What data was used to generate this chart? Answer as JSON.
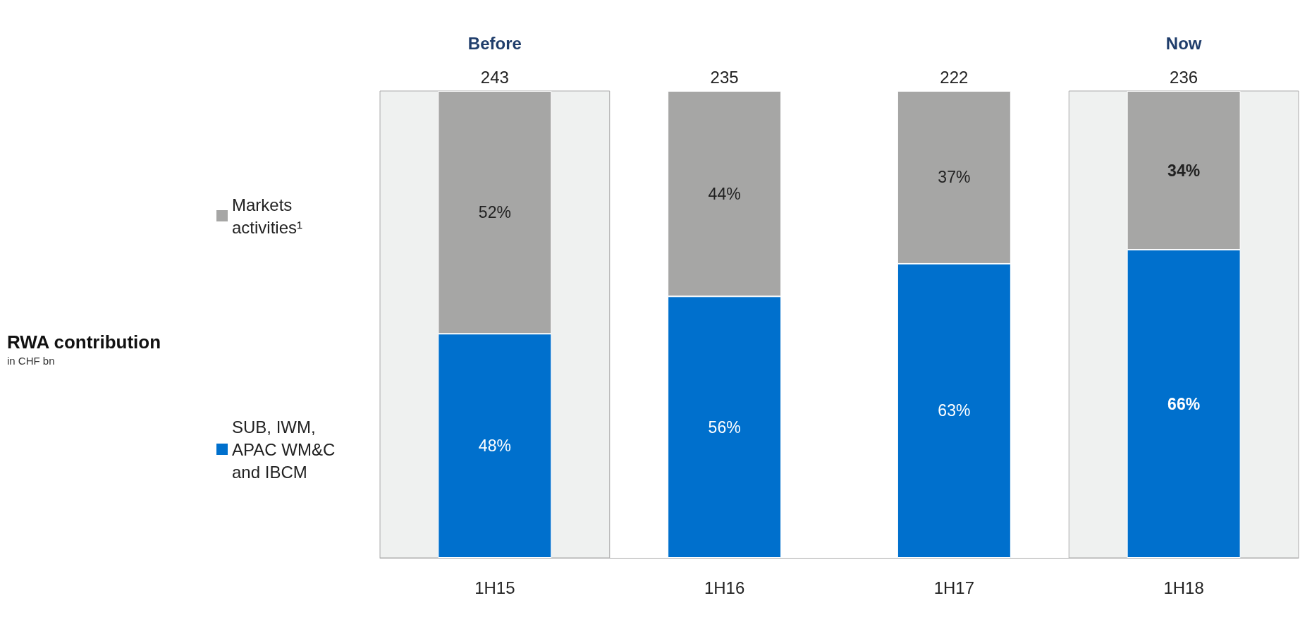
{
  "chart_data": {
    "type": "bar",
    "title": "RWA contribution",
    "subtitle": "in CHF bn",
    "categories": [
      "1H15",
      "1H16",
      "1H17",
      "1H18"
    ],
    "stacked": true,
    "series": [
      {
        "name": "SUB, IWM, APAC WM&C and IBCM",
        "color": "#0070cd",
        "values": [
          48,
          56,
          63,
          66
        ],
        "value_labels": [
          "48%",
          "56%",
          "63%",
          "66%"
        ]
      },
      {
        "name": "Markets activities¹",
        "color": "#a6a6a5",
        "values": [
          52,
          44,
          37,
          34
        ],
        "value_labels": [
          "52%",
          "44%",
          "37%",
          "34%"
        ]
      }
    ],
    "annotations": [
      {
        "text": "243",
        "x": "1H15",
        "y": 100
      },
      {
        "text": "235",
        "x": "1H16",
        "y": 100
      },
      {
        "text": "222",
        "x": "1H17",
        "y": 100
      },
      {
        "text": "236",
        "x": "1H18",
        "y": 100
      }
    ],
    "ylim": [
      0,
      100
    ],
    "bands": [
      {
        "axis": "x",
        "from": "1H15",
        "to": "1H15",
        "label": "Before",
        "color": "#eff1f0"
      },
      {
        "axis": "x",
        "from": "1H18",
        "to": "1H18",
        "label": "Now",
        "color": "#eff1f0"
      }
    ],
    "legend": "left"
  }
}
